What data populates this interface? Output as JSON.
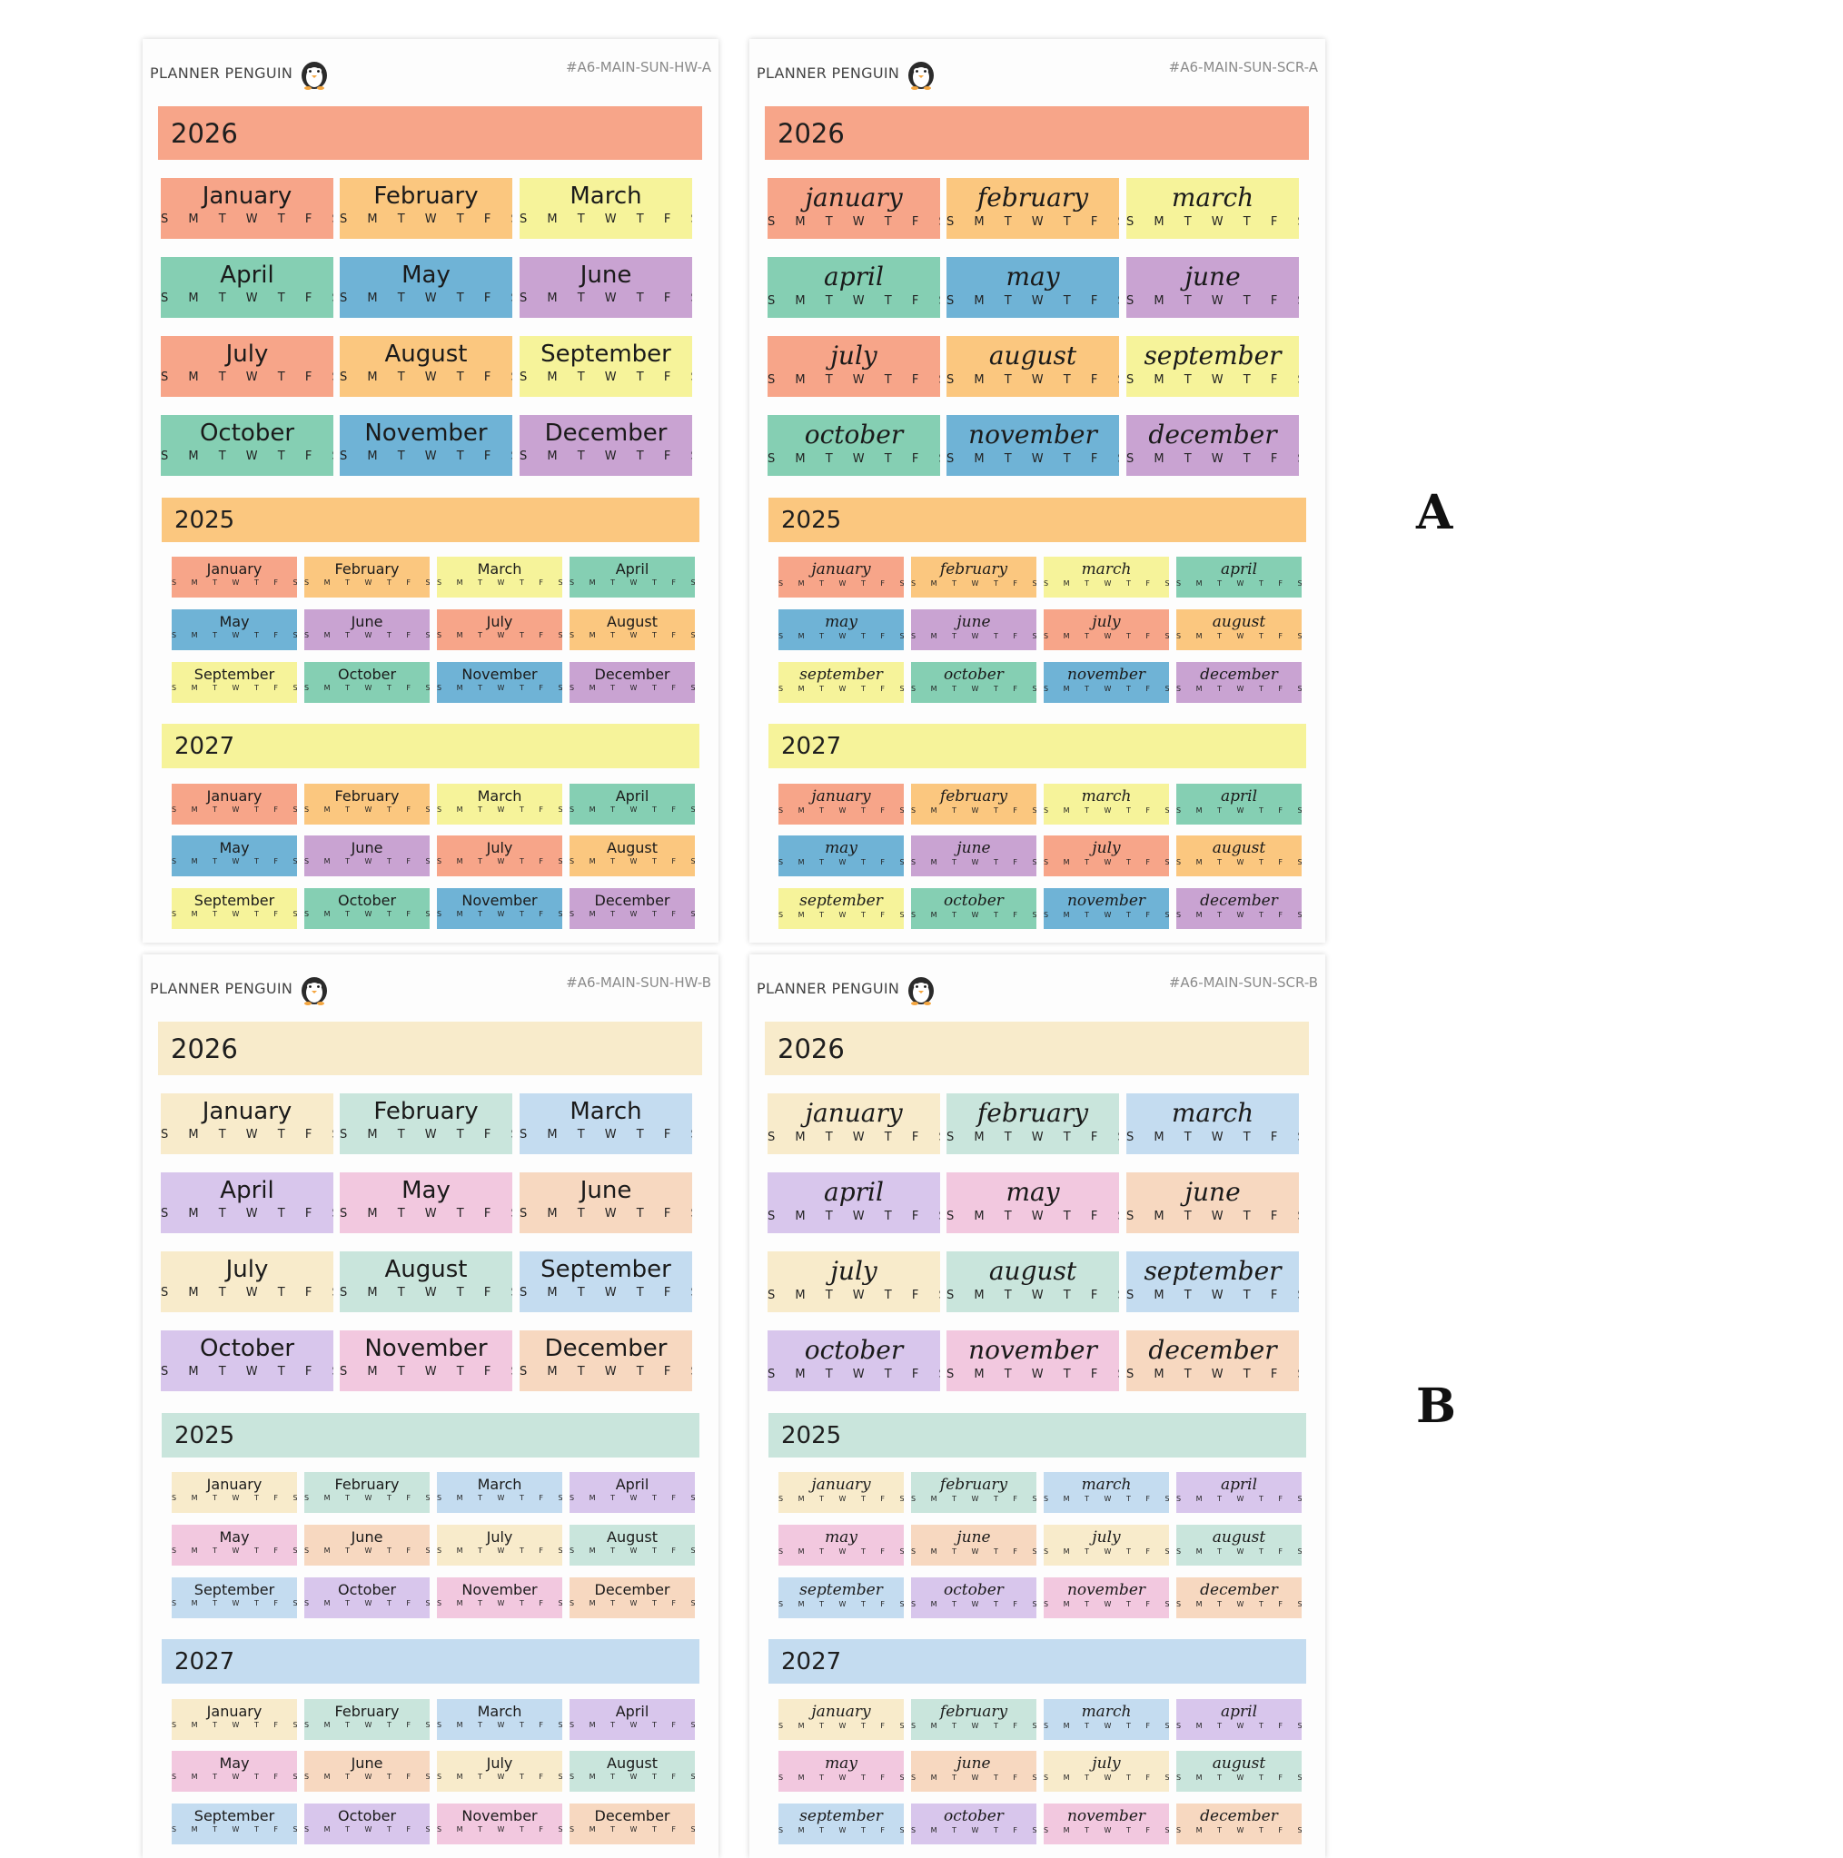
{
  "brand": "PLANNER PENGUIN",
  "weekdays": "S M T W T F S",
  "variant_labels": [
    "A",
    "B"
  ],
  "palettes": {
    "A": {
      "years": [
        "#f7a589",
        "#fbc77f",
        "#f6f39a"
      ],
      "cycle": [
        "#f7a589",
        "#fbc77f",
        "#f6f39a",
        "#85cfb3",
        "#6fb3d6",
        "#c9a3d2"
      ]
    },
    "B": {
      "years": [
        "#f8ebcb",
        "#c9e5dc",
        "#c4dcf0"
      ],
      "cycle": [
        "#f8ebcb",
        "#c9e5dc",
        "#c4dcf0",
        "#d8c6ec",
        "#f2c8df",
        "#f7d8c0"
      ]
    }
  },
  "sheets": [
    {
      "id": "hw-a",
      "code": "#A6-MAIN-SUN-HW-A",
      "palette": "A",
      "script": false,
      "years": [
        "2026",
        "2025",
        "2027"
      ],
      "months": [
        "January",
        "February",
        "March",
        "April",
        "May",
        "June",
        "July",
        "August",
        "September",
        "October",
        "November",
        "December"
      ]
    },
    {
      "id": "scr-a",
      "code": "#A6-MAIN-SUN-SCR-A",
      "palette": "A",
      "script": true,
      "years": [
        "2026",
        "2025",
        "2027"
      ],
      "months": [
        "january",
        "february",
        "march",
        "april",
        "may",
        "june",
        "july",
        "august",
        "september",
        "october",
        "november",
        "december"
      ]
    },
    {
      "id": "hw-b",
      "code": "#A6-MAIN-SUN-HW-B",
      "palette": "B",
      "script": false,
      "years": [
        "2026",
        "2025",
        "2027"
      ],
      "months": [
        "January",
        "February",
        "March",
        "April",
        "May",
        "June",
        "July",
        "August",
        "September",
        "October",
        "November",
        "December"
      ]
    },
    {
      "id": "scr-b",
      "code": "#A6-MAIN-SUN-SCR-B",
      "palette": "B",
      "script": true,
      "years": [
        "2026",
        "2025",
        "2027"
      ],
      "months": [
        "january",
        "february",
        "march",
        "april",
        "may",
        "june",
        "july",
        "august",
        "september",
        "october",
        "november",
        "december"
      ]
    }
  ]
}
